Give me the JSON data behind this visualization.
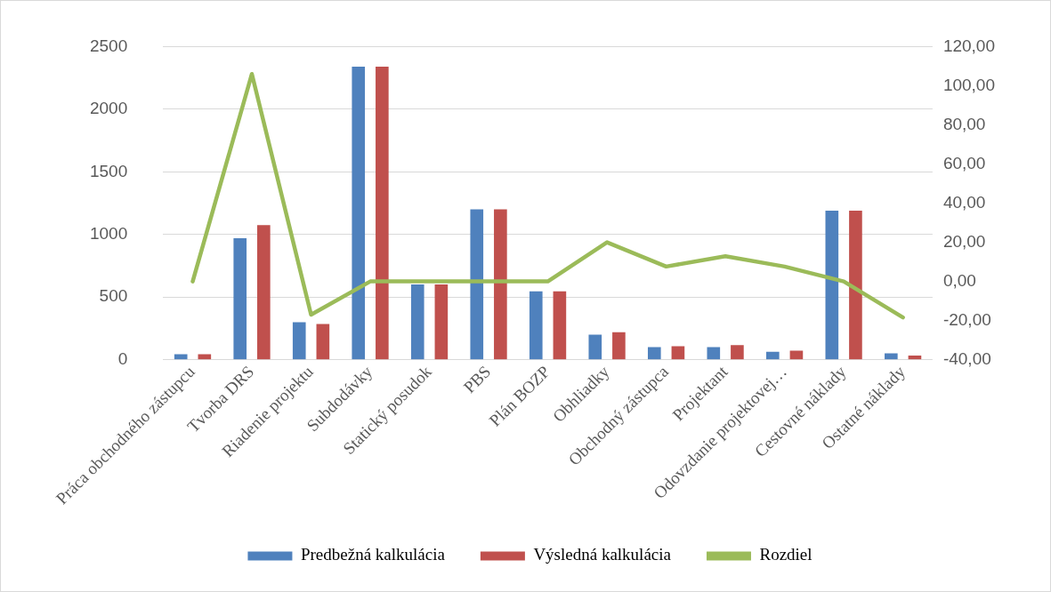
{
  "chart_data": {
    "type": "bar",
    "categories": [
      "Práca obchodného zástupcu",
      "Tvorba DRS",
      "Riadenie projektu",
      "Subdodávky",
      "Statický posudok",
      "PBS",
      "Plán BOZP",
      "Obhliadky",
      "Obchodný zástupca",
      "Projektant",
      "Odovzdanie projektovej…",
      "Cestovné náklady",
      "Ostatné náklady"
    ],
    "series": [
      {
        "name": "Predbežná kalkulácia",
        "color": "#4f81bd",
        "values": [
          43,
          970,
          300,
          2340,
          600,
          1200,
          545,
          200,
          100,
          100,
          64,
          1190,
          50
        ]
      },
      {
        "name": "Výsledná kalkulácia",
        "color": "#c0504d",
        "values": [
          43,
          1075,
          285,
          2340,
          600,
          1200,
          545,
          220,
          108,
          116,
          72,
          1190,
          33
        ]
      },
      {
        "name": "Rozdiel",
        "type": "line",
        "axis": "y2",
        "color": "#9bbb59",
        "marker": "none",
        "values": [
          0,
          106,
          -17,
          0,
          0,
          0,
          0,
          20,
          7.6,
          12.9,
          7.6,
          0,
          -18.4
        ]
      }
    ],
    "ylim": [
      0,
      2500
    ],
    "yticks": [
      0,
      500,
      1000,
      1500,
      2000,
      2500
    ],
    "y2lim": [
      -40,
      120
    ],
    "y2ticks": [
      {
        "value": -40,
        "label": "-40,00"
      },
      {
        "value": -20,
        "label": "-20,00"
      },
      {
        "value": 0,
        "label": "0,00"
      },
      {
        "value": 20,
        "label": "20,00"
      },
      {
        "value": 40,
        "label": "40,00"
      },
      {
        "value": 60,
        "label": "60,00"
      },
      {
        "value": 80,
        "label": "80,00"
      },
      {
        "value": 100,
        "label": "100,00"
      },
      {
        "value": 120,
        "label": "120,00"
      }
    ],
    "grid": "y",
    "legend": "bottom"
  }
}
